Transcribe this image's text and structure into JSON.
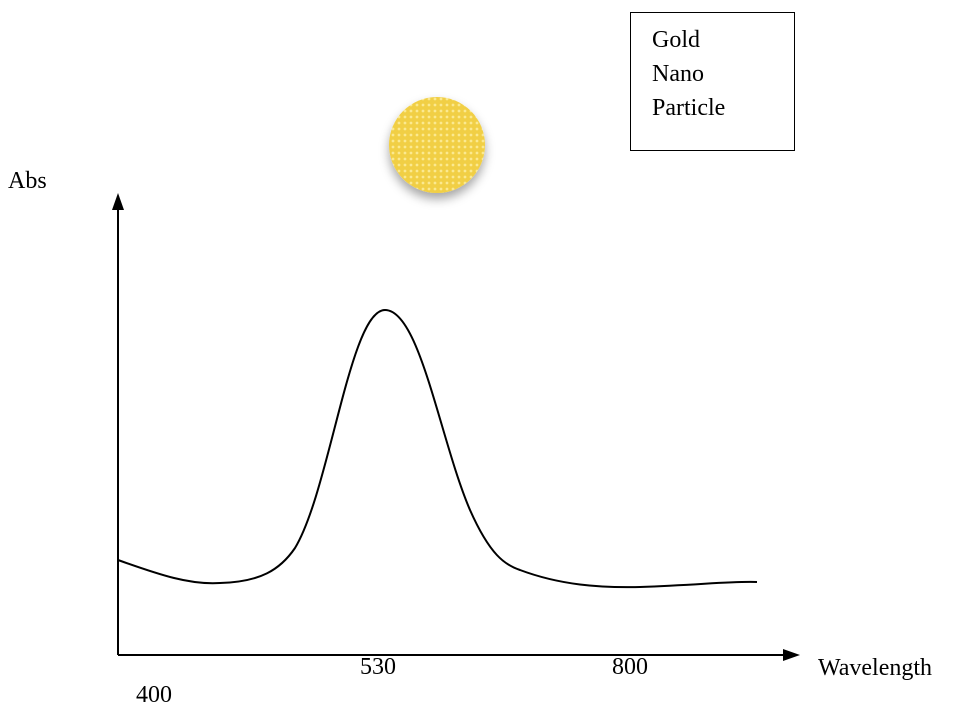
{
  "axes": {
    "y_label": "Abs",
    "x_label": "Wavelength",
    "x_labels": [
      "400",
      "530",
      "800"
    ]
  },
  "legend": {
    "lines": [
      "Gold",
      "Nano",
      "Particle"
    ]
  }
}
